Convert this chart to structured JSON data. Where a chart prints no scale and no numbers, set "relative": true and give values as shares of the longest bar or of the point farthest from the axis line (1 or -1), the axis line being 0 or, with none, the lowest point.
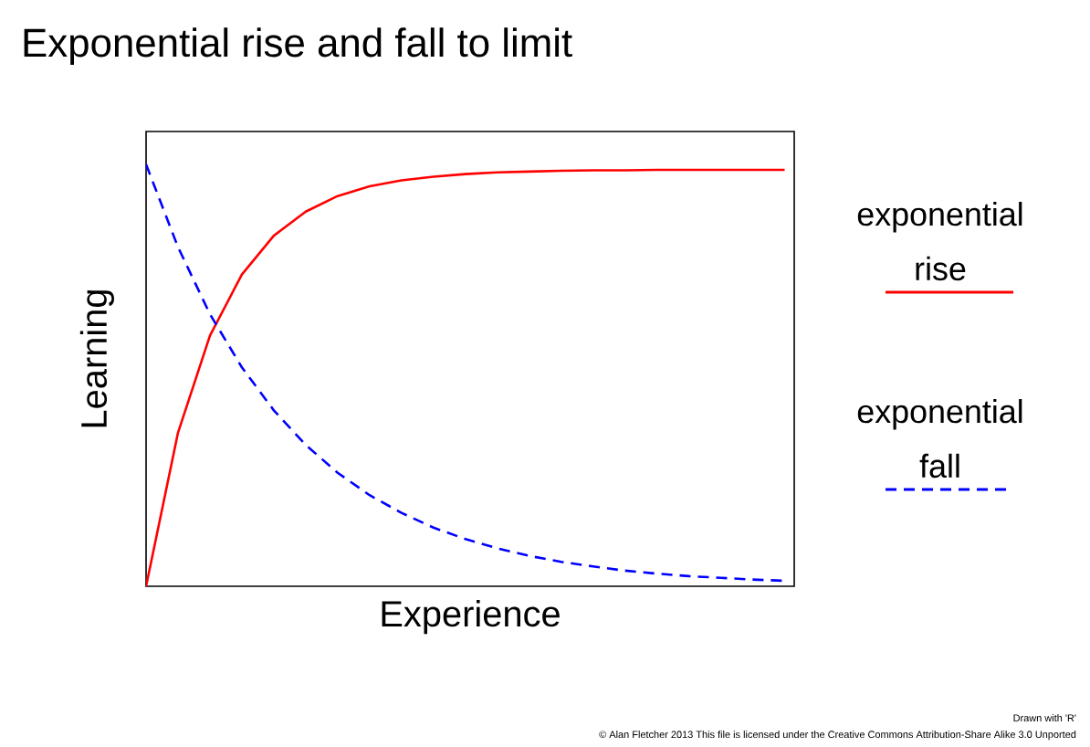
{
  "chart_data": {
    "type": "line",
    "title": "Exponential rise and fall to limit",
    "xlabel": "Experience",
    "ylabel": "Learning",
    "relative": true,
    "legend": "right",
    "categories": [
      null,
      null,
      null,
      null,
      null,
      null,
      null,
      null,
      null,
      null,
      null,
      null,
      null,
      null,
      null,
      null,
      null,
      null,
      null,
      null,
      null
    ],
    "series": [
      {
        "name": "exponential rise",
        "color": "#ff0000",
        "line_style": "solid",
        "values": [
          0,
          0.364,
          0.594,
          0.739,
          0.831,
          0.888,
          0.925,
          0.948,
          0.962,
          0.971,
          0.977,
          0.981,
          0.983,
          0.985,
          0.986,
          0.986,
          0.987,
          0.987,
          0.987,
          0.987,
          0.987
        ]
      },
      {
        "name": "exponential fall",
        "color": "#0000ff",
        "line_style": "dashed",
        "values": [
          1,
          0.804,
          0.645,
          0.519,
          0.417,
          0.335,
          0.269,
          0.216,
          0.174,
          0.139,
          0.112,
          0.09,
          0.072,
          0.058,
          0.047,
          0.037,
          0.03,
          0.024,
          0.02,
          0.016,
          0.013
        ]
      }
    ],
    "annotations": [
      "Drawn with 'R'",
      "© Alan Fletcher 2013 This file is licensed under the Creative Commons Attribution-Share Alike 3.0 Unported"
    ]
  }
}
